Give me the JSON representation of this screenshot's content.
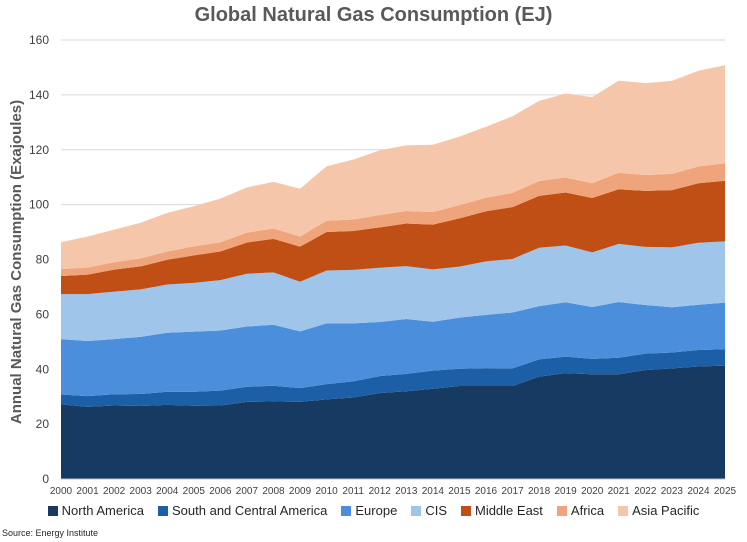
{
  "chart_data": {
    "type": "area",
    "stacked": true,
    "title": "Global Natural Gas Consumption (EJ)",
    "xlabel": "",
    "ylabel": "Annual Natural Gas Consumption (Exajoules)",
    "ylim": [
      0,
      160
    ],
    "yticks": [
      0,
      20,
      40,
      60,
      80,
      100,
      120,
      140,
      160
    ],
    "grid": true,
    "legend_position": "bottom",
    "x": [
      "2000",
      "2001",
      "2002",
      "2003",
      "2004",
      "2005",
      "2006",
      "2007",
      "2008",
      "2009",
      "2010",
      "2011",
      "2012",
      "2013",
      "2014",
      "2015",
      "2016",
      "2017",
      "2018",
      "2019",
      "2020",
      "2021",
      "2022",
      "2023",
      "2024",
      "2025"
    ],
    "series": [
      {
        "name": "North America",
        "color": "#173a63",
        "values": [
          27.2,
          26.3,
          26.8,
          26.6,
          27.0,
          26.7,
          26.8,
          28.1,
          28.3,
          28.1,
          29.0,
          29.7,
          31.3,
          32.0,
          32.9,
          33.9,
          33.9,
          33.9,
          37.3,
          38.6,
          38.2,
          38.2,
          39.7,
          40.3,
          41.0,
          41.3
        ]
      },
      {
        "name": "South and Central America",
        "color": "#1d5fa6",
        "values": [
          3.6,
          3.9,
          4.1,
          4.4,
          4.8,
          5.1,
          5.4,
          5.5,
          5.7,
          5.0,
          5.6,
          5.9,
          6.2,
          6.3,
          6.6,
          6.3,
          6.5,
          6.4,
          6.3,
          6.0,
          5.6,
          6.0,
          6.0,
          5.8,
          6.0,
          6.0
        ]
      },
      {
        "name": "Europe",
        "color": "#4b8fdc",
        "values": [
          20.2,
          20.1,
          20.1,
          20.8,
          21.5,
          21.9,
          21.9,
          22.0,
          22.2,
          20.7,
          22.1,
          21.1,
          19.7,
          20.0,
          17.8,
          18.6,
          19.4,
          20.4,
          19.4,
          19.8,
          18.9,
          20.3,
          17.7,
          16.5,
          16.5,
          17.0
        ]
      },
      {
        "name": "CIS",
        "color": "#9fc5ea",
        "values": [
          16.4,
          17.1,
          17.3,
          17.3,
          17.6,
          17.8,
          18.4,
          19.2,
          19.1,
          18.1,
          19.3,
          19.5,
          19.8,
          19.3,
          19.1,
          18.6,
          19.5,
          19.5,
          21.3,
          20.7,
          19.9,
          21.2,
          21.2,
          21.8,
          22.6,
          22.3
        ]
      },
      {
        "name": "Middle East",
        "color": "#c04f15",
        "values": [
          6.6,
          7.1,
          8.0,
          8.4,
          9.0,
          10.0,
          10.4,
          11.4,
          12.2,
          12.8,
          14.0,
          14.2,
          14.7,
          15.5,
          16.3,
          17.6,
          18.3,
          18.9,
          18.9,
          19.3,
          19.8,
          19.9,
          20.4,
          20.9,
          21.7,
          22.1
        ]
      },
      {
        "name": "Africa",
        "color": "#f0a47c",
        "values": [
          2.5,
          2.6,
          2.7,
          2.9,
          3.0,
          3.3,
          3.4,
          3.6,
          3.8,
          3.7,
          4.1,
          4.2,
          4.5,
          4.6,
          4.6,
          4.8,
          4.9,
          5.2,
          5.4,
          5.5,
          5.4,
          6.0,
          5.8,
          5.9,
          6.1,
          6.4
        ]
      },
      {
        "name": "Asia Pacific",
        "color": "#f6c6ab",
        "values": [
          9.8,
          11.3,
          11.9,
          13.0,
          14.1,
          14.6,
          15.9,
          16.5,
          17.0,
          17.4,
          19.9,
          21.8,
          23.6,
          23.9,
          24.5,
          25.0,
          25.9,
          27.9,
          29.2,
          30.6,
          31.4,
          33.6,
          33.5,
          33.9,
          34.9,
          35.7
        ]
      }
    ],
    "source": "Source: Energy Institute"
  }
}
